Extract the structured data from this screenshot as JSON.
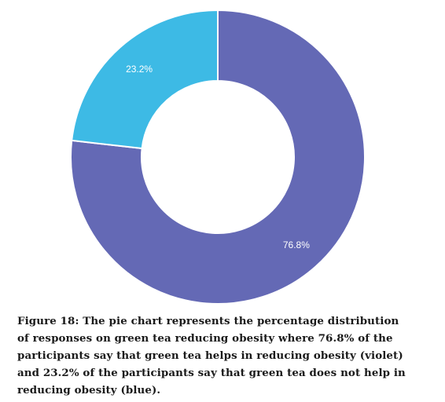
{
  "chart_data": {
    "type": "pie",
    "variant": "donut",
    "slices": [
      {
        "label": "76.8%",
        "value": 76.8,
        "color": "#6469b5"
      },
      {
        "label": "23.2%",
        "value": 23.2,
        "color": "#3dbae5"
      }
    ],
    "start": "top",
    "direction": "clockwise",
    "legend": "none"
  },
  "caption": {
    "lines": [
      "Figure 18: The pie chart represents the percentage distribution",
      "of responses on green tea reducing obesity where 76.8% of the",
      "participants say that green tea helps in reducing obesity  (violet)",
      "and 23.2% of the participants say that green tea does not  help in",
      "reducing obesity (blue)."
    ]
  }
}
